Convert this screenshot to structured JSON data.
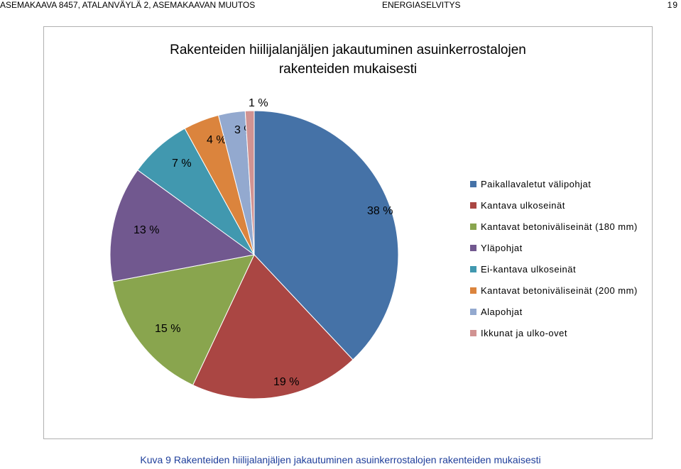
{
  "header": {
    "left": "ASEMAKAAVA 8457, ATALANVÄYLÄ 2, ASEMAKAAVAN MUUTOS",
    "center": "ENERGIASELVITYS",
    "page": "19"
  },
  "caption": "Kuva 9 Rakenteiden hiilijalanjäljen jakautuminen asuinkerrostalojen rakenteiden mukaisesti",
  "chart_data": {
    "type": "pie",
    "title_lines": [
      "Rakenteiden hiilijalanjäljen jakautuminen asuinkerrostalojen",
      "rakenteiden mukaisesti"
    ],
    "legend_position": "right",
    "slices": [
      {
        "label": "Paikallavaletut välipohjat",
        "value": 38,
        "value_label": "38 %",
        "color": "#4572A7"
      },
      {
        "label": "Kantava ulkoseinät",
        "value": 19,
        "value_label": "19 %",
        "color": "#AA4643"
      },
      {
        "label": "Kantavat betoniväliseinät (180 mm)",
        "value": 15,
        "value_label": "15 %",
        "color": "#89A54E"
      },
      {
        "label": "Yläpohjat",
        "value": 13,
        "value_label": "13 %",
        "color": "#71588F"
      },
      {
        "label": "Ei-kantava ulkoseinät",
        "value": 7,
        "value_label": "7 %",
        "color": "#4198AF"
      },
      {
        "label": "Kantavat betoniväliseinät (200 mm)",
        "value": 4,
        "value_label": "4 %",
        "color": "#DB843D"
      },
      {
        "label": "Alapohjat",
        "value": 3,
        "value_label": "3 %",
        "color": "#93A9CF"
      },
      {
        "label": "Ikkunat ja ulko-ovet",
        "value": 1,
        "value_label": "1 %",
        "color": "#D19392"
      }
    ]
  }
}
